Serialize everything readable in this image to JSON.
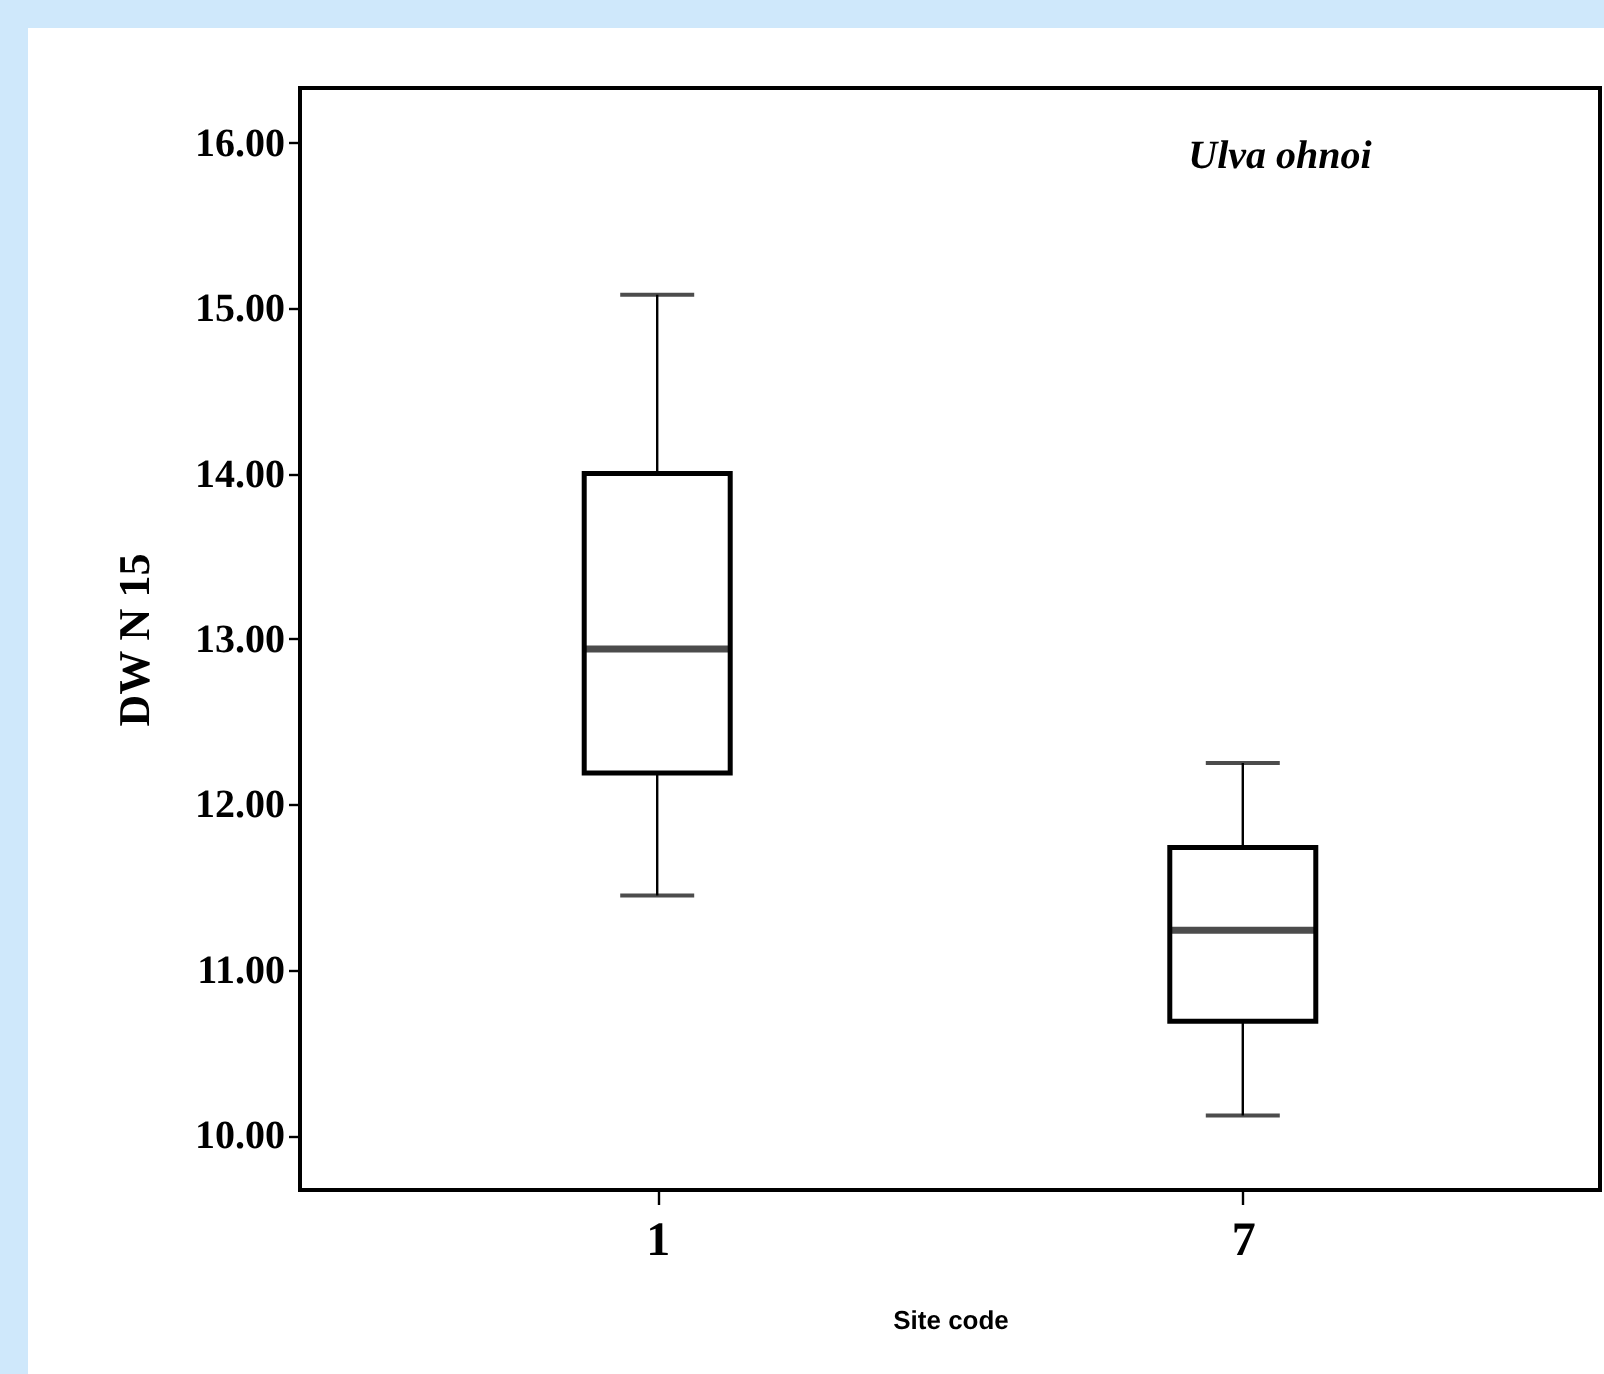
{
  "chart_data": {
    "type": "box",
    "annotations": [
      "Ulva ohnoi"
    ],
    "xlabel": "Site code",
    "ylabel": "DW N 15",
    "categories": [
      "1",
      "7"
    ],
    "boxes": [
      {
        "low": 11.45,
        "q1": 12.19,
        "median": 12.94,
        "q3": 14.0,
        "high": 15.08
      },
      {
        "low": 10.12,
        "q1": 10.69,
        "median": 11.24,
        "q3": 11.74,
        "high": 12.25
      }
    ],
    "ylim": [
      9.67,
      16.33
    ],
    "yticks": [
      {
        "value": 10,
        "label": "10.00"
      },
      {
        "value": 11,
        "label": "11.00"
      },
      {
        "value": 12,
        "label": "12.00"
      },
      {
        "value": 13,
        "label": "13.00"
      },
      {
        "value": 14,
        "label": "14.00"
      },
      {
        "value": 15,
        "label": "15.00"
      },
      {
        "value": 16,
        "label": "16.00"
      }
    ]
  }
}
